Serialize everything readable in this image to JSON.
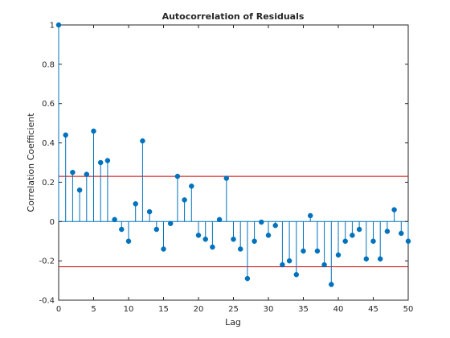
{
  "chart_data": {
    "type": "stem",
    "title": "Autocorrelation of Residuals",
    "xlabel": "Lag",
    "ylabel": "Correlation Coefficient",
    "xlim": [
      0,
      50
    ],
    "ylim": [
      -0.4,
      1
    ],
    "xticks": [
      0,
      5,
      10,
      15,
      20,
      25,
      30,
      35,
      40,
      45,
      50
    ],
    "yticks": [
      -0.4,
      -0.2,
      0,
      0.2,
      0.4,
      0.6,
      0.8,
      1
    ],
    "ytick_labels": [
      "-0.4",
      "-0.2",
      "0",
      "0.2",
      "0.4",
      "0.6",
      "0.8",
      "1"
    ],
    "grid": false,
    "marker_color": "#0072bd",
    "bound_color": "#cc0000",
    "confidence_bounds": [
      0.23,
      -0.23
    ],
    "x": [
      0,
      1,
      2,
      3,
      4,
      5,
      6,
      7,
      8,
      9,
      10,
      11,
      12,
      13,
      14,
      15,
      16,
      17,
      18,
      19,
      20,
      21,
      22,
      23,
      24,
      25,
      26,
      27,
      28,
      29,
      30,
      31,
      32,
      33,
      34,
      35,
      36,
      37,
      38,
      39,
      40,
      41,
      42,
      43,
      44,
      45,
      46,
      47,
      48,
      49,
      50
    ],
    "values": [
      1.0,
      0.44,
      0.25,
      0.16,
      0.24,
      0.46,
      0.3,
      0.31,
      0.01,
      -0.04,
      -0.1,
      0.09,
      0.41,
      0.05,
      -0.04,
      -0.14,
      -0.01,
      0.23,
      0.11,
      0.18,
      -0.07,
      -0.09,
      -0.13,
      0.01,
      0.22,
      -0.09,
      -0.14,
      -0.29,
      -0.1,
      -0.003,
      -0.07,
      -0.02,
      -0.22,
      -0.2,
      -0.27,
      -0.15,
      0.03,
      -0.15,
      -0.22,
      -0.32,
      -0.17,
      -0.1,
      -0.07,
      -0.04,
      -0.19,
      -0.1,
      -0.19,
      -0.05,
      0.06,
      -0.06,
      -0.1
    ]
  }
}
